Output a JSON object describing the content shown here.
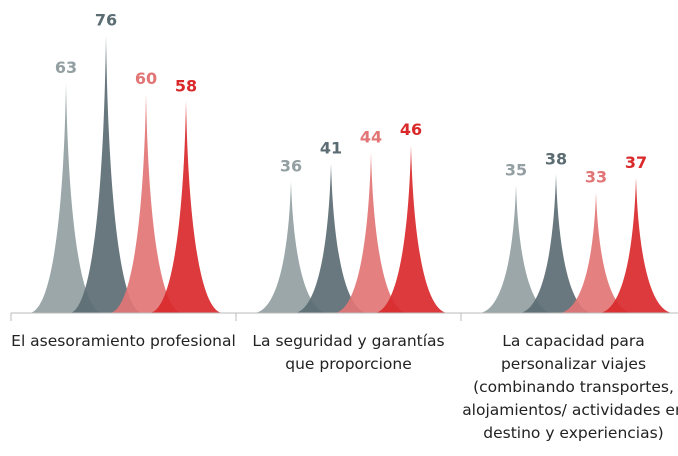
{
  "chart_data": {
    "type": "spike",
    "categories": [
      "El asesoramiento profesional",
      "La seguridad y garantías que proporcione",
      "La capacidad para personalizar viajes (combinando transportes, alojamientos/ actividades en destino y experiencias)"
    ],
    "series": [
      {
        "color": "#939fa2",
        "values": [
          63,
          36,
          35
        ]
      },
      {
        "color": "#5b6d73",
        "values": [
          76,
          41,
          38
        ]
      },
      {
        "color": "#e27575",
        "values": [
          60,
          44,
          33
        ]
      },
      {
        "color": "#d9292b",
        "values": [
          58,
          46,
          37
        ]
      }
    ]
  }
}
